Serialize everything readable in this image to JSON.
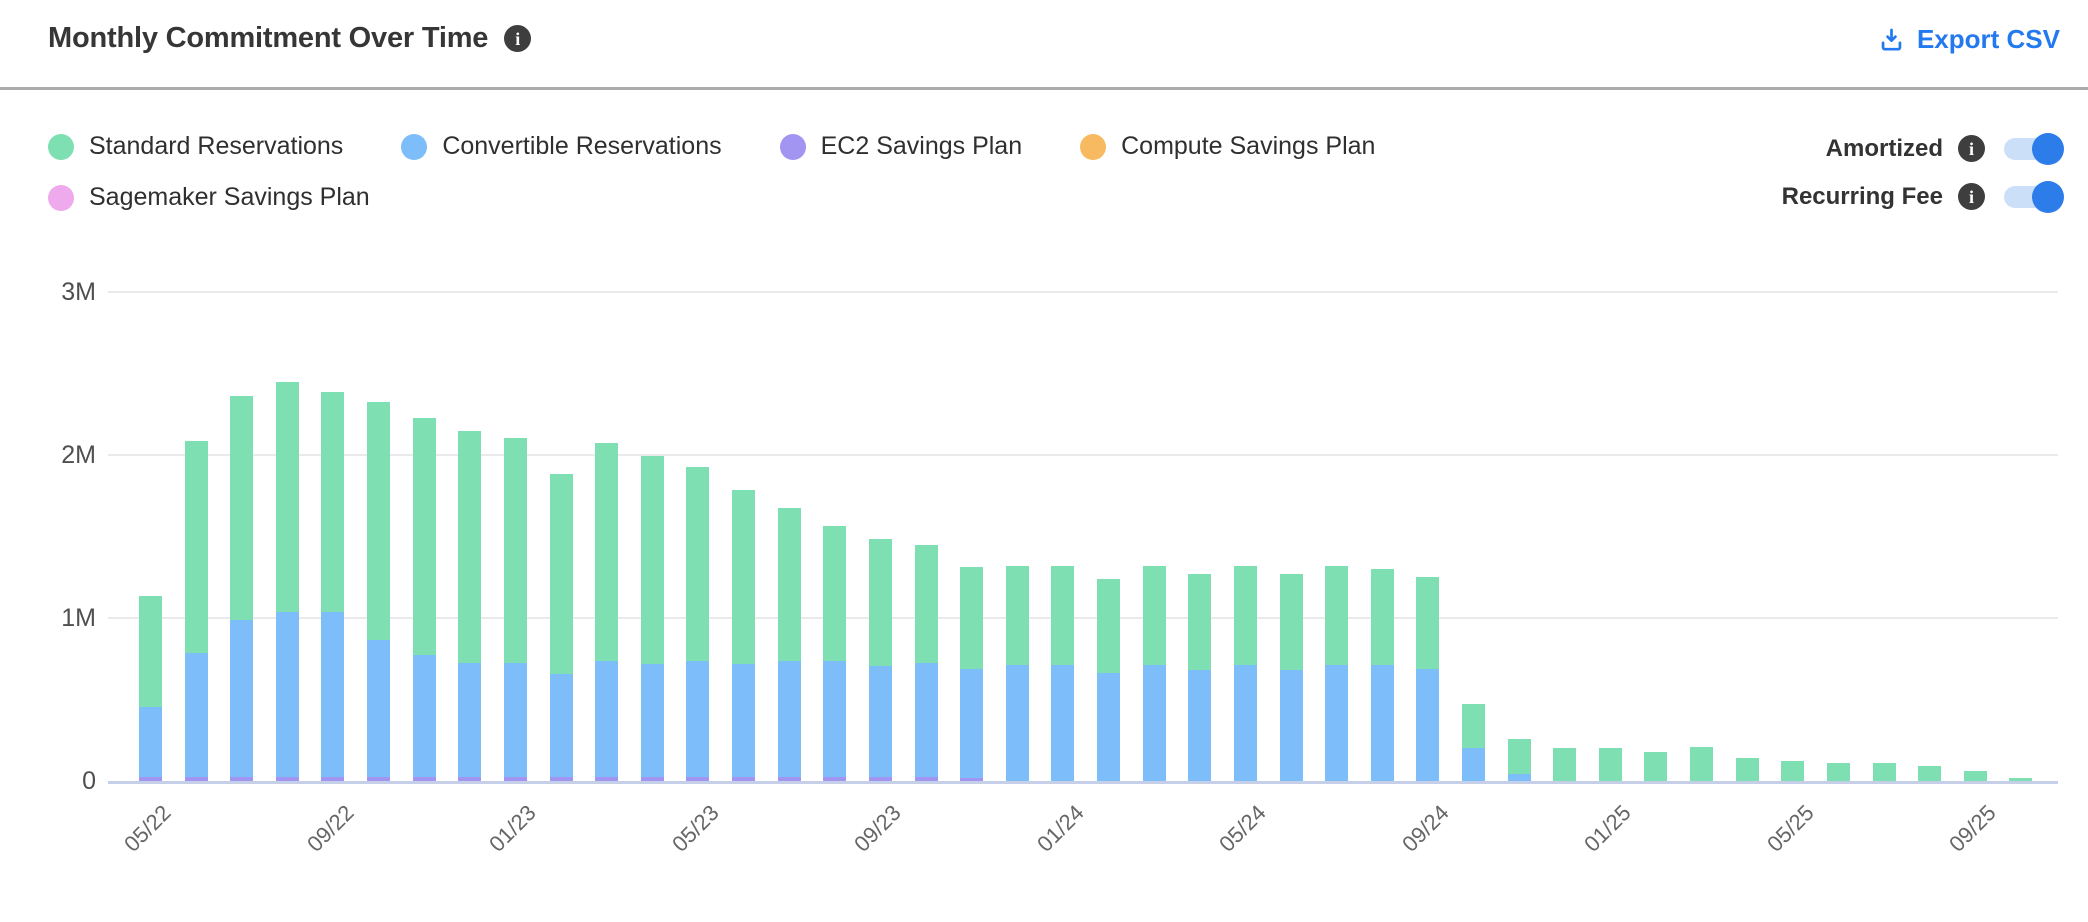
{
  "header": {
    "title": "Monthly Commitment Over Time",
    "export_label": "Export CSV",
    "export_color": "#2379ef"
  },
  "legend": {
    "items": [
      {
        "label": "Standard Reservations",
        "color": "#7edfb2"
      },
      {
        "label": "Convertible Reservations",
        "color": "#7dbefa"
      },
      {
        "label": "EC2 Savings Plan",
        "color": "#a195f1"
      },
      {
        "label": "Compute Savings Plan",
        "color": "#f7ba61"
      },
      {
        "label": "Sagemaker Savings Plan",
        "color": "#efa9ed"
      }
    ]
  },
  "toggles": [
    {
      "label": "Amortized",
      "state": "on"
    },
    {
      "label": "Recurring Fee",
      "state": "on"
    }
  ],
  "chart_data": {
    "type": "bar",
    "stacked": true,
    "title": "Monthly Commitment Over Time",
    "xlabel": "",
    "ylabel": "",
    "unit": "M (millions)",
    "ylim": [
      0,
      3000000
    ],
    "y_ticks": [
      "0",
      "1M",
      "2M",
      "3M"
    ],
    "grid": "horizontal",
    "legend_position": "top-left",
    "x_tick_every": 4,
    "x_tick_labels": [
      "05/22",
      "09/22",
      "01/23",
      "05/23",
      "09/23",
      "01/24",
      "05/24",
      "09/24",
      "01/25",
      "05/25",
      "09/25"
    ],
    "categories": [
      "05/22",
      "06/22",
      "07/22",
      "08/22",
      "09/22",
      "10/22",
      "11/22",
      "12/22",
      "01/23",
      "02/23",
      "03/23",
      "04/23",
      "05/23",
      "06/23",
      "07/23",
      "08/23",
      "09/23",
      "10/23",
      "11/23",
      "12/23",
      "01/24",
      "02/24",
      "03/24",
      "04/24",
      "05/24",
      "06/24",
      "07/24",
      "08/24",
      "09/24",
      "10/24",
      "11/24",
      "12/24",
      "01/25",
      "02/25",
      "03/25",
      "04/25",
      "05/25",
      "06/25",
      "07/25",
      "08/25",
      "09/25",
      "10/25"
    ],
    "values_in": "millions",
    "stack_order_bottom_to_top": [
      "EC2 Savings Plan",
      "Convertible Reservations",
      "Standard Reservations",
      "Compute Savings Plan",
      "Sagemaker Savings Plan"
    ],
    "series": [
      {
        "name": "Standard Reservations",
        "color": "#7edfb2",
        "values": [
          0.68,
          1.3,
          1.38,
          1.41,
          1.35,
          1.46,
          1.45,
          1.42,
          1.38,
          1.23,
          1.34,
          1.28,
          1.19,
          1.07,
          0.94,
          0.83,
          0.78,
          0.72,
          0.62,
          0.61,
          0.61,
          0.58,
          0.61,
          0.59,
          0.61,
          0.59,
          0.61,
          0.59,
          0.56,
          0.27,
          0.22,
          0.2,
          0.2,
          0.18,
          0.21,
          0.14,
          0.12,
          0.11,
          0.11,
          0.09,
          0.06,
          0.02
        ]
      },
      {
        "name": "Convertible Reservations",
        "color": "#7dbefa",
        "values": [
          0.43,
          0.76,
          0.96,
          1.01,
          1.01,
          0.84,
          0.75,
          0.7,
          0.7,
          0.63,
          0.71,
          0.69,
          0.71,
          0.69,
          0.71,
          0.71,
          0.68,
          0.7,
          0.67,
          0.71,
          0.71,
          0.66,
          0.71,
          0.68,
          0.71,
          0.68,
          0.71,
          0.71,
          0.69,
          0.2,
          0.04,
          0,
          0,
          0,
          0,
          0,
          0,
          0,
          0,
          0,
          0,
          0
        ]
      },
      {
        "name": "EC2 Savings Plan",
        "color": "#a195f1",
        "values": [
          0.025,
          0.025,
          0.025,
          0.025,
          0.025,
          0.025,
          0.025,
          0.025,
          0.025,
          0.025,
          0.025,
          0.025,
          0.025,
          0.025,
          0.025,
          0.025,
          0.025,
          0.025,
          0.02,
          0,
          0,
          0,
          0,
          0,
          0,
          0,
          0,
          0,
          0,
          0,
          0,
          0,
          0,
          0,
          0,
          0,
          0,
          0,
          0,
          0,
          0,
          0
        ]
      },
      {
        "name": "Compute Savings Plan",
        "color": "#f7ba61",
        "values": [
          0,
          0,
          0,
          0,
          0,
          0,
          0,
          0,
          0,
          0,
          0,
          0,
          0,
          0,
          0,
          0,
          0,
          0,
          0,
          0,
          0,
          0,
          0,
          0,
          0,
          0,
          0,
          0,
          0,
          0,
          0,
          0,
          0,
          0,
          0,
          0,
          0,
          0,
          0,
          0,
          0,
          0
        ]
      },
      {
        "name": "Sagemaker Savings Plan",
        "color": "#efa9ed",
        "values": [
          0,
          0,
          0,
          0,
          0,
          0,
          0,
          0,
          0,
          0,
          0,
          0,
          0,
          0,
          0,
          0,
          0,
          0,
          0,
          0,
          0,
          0,
          0,
          0,
          0,
          0,
          0,
          0,
          0,
          0,
          0,
          0,
          0,
          0,
          0,
          0,
          0,
          0,
          0,
          0,
          0,
          0
        ]
      }
    ]
  }
}
